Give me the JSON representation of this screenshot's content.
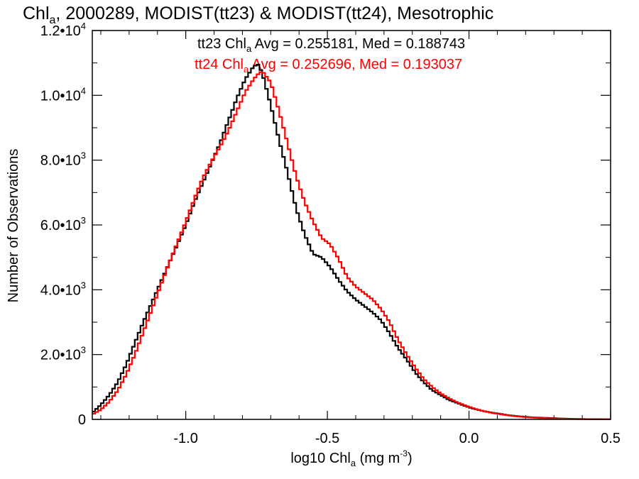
{
  "chart_data": {
    "type": "line",
    "title": {
      "prefix": "Chl",
      "sub": "a",
      "rest": ", 2000289, MODIST(tt23) & MODIST(tt24), Mesotrophic"
    },
    "xlabel": {
      "prefix": "log10 Chl",
      "sub": "a",
      "mid": " (mg m",
      "sup": "-3",
      "end": ")"
    },
    "ylabel": "Number of Observations",
    "xlim": [
      -1.33,
      0.5
    ],
    "ylim": [
      0,
      12000
    ],
    "x_ticks": [
      {
        "value": -1.0,
        "label": "-1.0"
      },
      {
        "value": -0.5,
        "label": "-0.5"
      },
      {
        "value": 0.0,
        "label": "0.0"
      },
      {
        "value": 0.5,
        "label": "0.5"
      }
    ],
    "y_ticks": [
      {
        "value": 0,
        "mant": "0",
        "exp": ""
      },
      {
        "value": 2000,
        "mant": "2.0•10",
        "exp": "3"
      },
      {
        "value": 4000,
        "mant": "4.0•10",
        "exp": "3"
      },
      {
        "value": 6000,
        "mant": "6.0•10",
        "exp": "3"
      },
      {
        "value": 8000,
        "mant": "8.0•10",
        "exp": "3"
      },
      {
        "value": 10000,
        "mant": "1.0•10",
        "exp": "4"
      },
      {
        "value": 12000,
        "mant": "1.2•10",
        "exp": "4"
      }
    ],
    "grid": false,
    "legend": [
      {
        "pre": "tt23 Chl",
        "sub": "a",
        "post": " Avg = 0.255181, Med = 0.188743",
        "color": "#000000"
      },
      {
        "pre": "tt24 Chl",
        "sub": "a",
        "post": " Avg = 0.252696, Med = 0.193037",
        "color": "#ff0000"
      }
    ],
    "series": [
      {
        "color": "#000000",
        "x": [
          -1.33,
          -1.3,
          -1.27,
          -1.24,
          -1.21,
          -1.18,
          -1.15,
          -1.12,
          -1.09,
          -1.06,
          -1.03,
          -1.0,
          -0.97,
          -0.94,
          -0.91,
          -0.88,
          -0.85,
          -0.82,
          -0.79,
          -0.76,
          -0.745,
          -0.73,
          -0.7,
          -0.67,
          -0.64,
          -0.61,
          -0.58,
          -0.55,
          -0.52,
          -0.49,
          -0.46,
          -0.43,
          -0.4,
          -0.37,
          -0.34,
          -0.31,
          -0.28,
          -0.25,
          -0.22,
          -0.19,
          -0.16,
          -0.13,
          -0.1,
          -0.07,
          -0.04,
          -0.01,
          0.02,
          0.05,
          0.08,
          0.11,
          0.14,
          0.17,
          0.2,
          0.23,
          0.26,
          0.29,
          0.32,
          0.35,
          0.38,
          0.41,
          0.44,
          0.47,
          0.5
        ],
        "values": [
          200,
          450,
          750,
          1150,
          1700,
          2350,
          3000,
          3600,
          4200,
          4800,
          5400,
          6000,
          6700,
          7300,
          7900,
          8500,
          9200,
          9900,
          10500,
          10900,
          10950,
          10700,
          9700,
          8600,
          7600,
          6500,
          5700,
          5100,
          5000,
          4700,
          4300,
          3950,
          3700,
          3500,
          3300,
          3050,
          2650,
          2200,
          1850,
          1450,
          1150,
          900,
          750,
          600,
          500,
          400,
          320,
          260,
          210,
          170,
          130,
          100,
          80,
          60,
          50,
          40,
          30,
          20,
          15,
          10,
          8,
          5,
          3
        ]
      },
      {
        "color": "#ff0000",
        "x": [
          -1.33,
          -1.3,
          -1.27,
          -1.24,
          -1.21,
          -1.18,
          -1.15,
          -1.12,
          -1.09,
          -1.06,
          -1.03,
          -1.0,
          -0.97,
          -0.94,
          -0.91,
          -0.88,
          -0.85,
          -0.82,
          -0.79,
          -0.76,
          -0.745,
          -0.73,
          -0.7,
          -0.67,
          -0.64,
          -0.61,
          -0.58,
          -0.55,
          -0.52,
          -0.49,
          -0.46,
          -0.43,
          -0.4,
          -0.37,
          -0.34,
          -0.31,
          -0.28,
          -0.25,
          -0.22,
          -0.19,
          -0.16,
          -0.13,
          -0.1,
          -0.07,
          -0.04,
          -0.01,
          0.02,
          0.05,
          0.08,
          0.11,
          0.14,
          0.17,
          0.2,
          0.23,
          0.26,
          0.29,
          0.32,
          0.35,
          0.38,
          0.41,
          0.44,
          0.47,
          0.5
        ],
        "values": [
          150,
          300,
          550,
          900,
          1400,
          2000,
          2700,
          3400,
          4100,
          4800,
          5450,
          6100,
          6800,
          7450,
          7950,
          8400,
          8900,
          9500,
          10100,
          10500,
          10650,
          10750,
          10400,
          9500,
          8500,
          7500,
          6700,
          6100,
          5600,
          5400,
          4950,
          4400,
          4100,
          3900,
          3700,
          3400,
          3000,
          2450,
          2000,
          1600,
          1250,
          1000,
          800,
          650,
          520,
          420,
          330,
          260,
          200,
          160,
          120,
          90,
          70,
          55,
          40,
          30,
          22,
          15,
          10,
          7,
          5,
          3,
          2
        ]
      }
    ]
  }
}
